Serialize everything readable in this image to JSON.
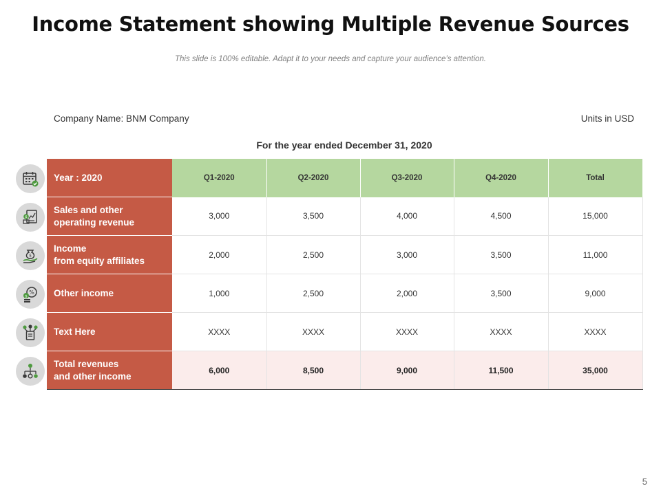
{
  "slide": {
    "title": "Income Statement showing Multiple Revenue Sources",
    "subtitle": "This slide is 100% editable. Adapt it to your needs and capture your audience’s attention.",
    "company_name": "Company Name: BNM Company",
    "units": "Units in USD",
    "period": "For the year ended December 31, 2020",
    "page_number": "5"
  },
  "table": {
    "header": {
      "label": "Year : 2020",
      "columns": [
        "Q1-2020",
        "Q2-2020",
        "Q3-2020",
        "Q4-2020",
        "Total"
      ]
    },
    "rows": [
      {
        "label_lines": [
          "Sales and other",
          "operating revenue"
        ],
        "values": [
          "3,000",
          "3,500",
          "4,000",
          "4,500",
          "15,000"
        ]
      },
      {
        "label_lines": [
          "Income",
          "from equity affiliates"
        ],
        "values": [
          "2,000",
          "2,500",
          "3,000",
          "3,500",
          "11,000"
        ]
      },
      {
        "label_lines": [
          "Other income"
        ],
        "values": [
          "1,000",
          "2,500",
          "2,000",
          "3,500",
          "9,000"
        ]
      },
      {
        "label_lines": [
          "Text Here"
        ],
        "values": [
          "XXXX",
          "XXXX",
          "XXXX",
          "XXXX",
          "XXXX"
        ]
      },
      {
        "label_lines": [
          "Total revenues",
          "and other income"
        ],
        "values": [
          "6,000",
          "8,500",
          "9,000",
          "11,500",
          "35,000"
        ]
      }
    ]
  },
  "icons": [
    "calendar-icon",
    "report-icon",
    "money-bag-hand-icon",
    "percent-coins-icon",
    "network-document-icon",
    "hierarchy-icon"
  ],
  "colors": {
    "label_bg": "#c55a45",
    "header_bg": "#b5d79f",
    "total_row_bg": "#fbeceb",
    "icon_circle": "#d9d9d9"
  }
}
